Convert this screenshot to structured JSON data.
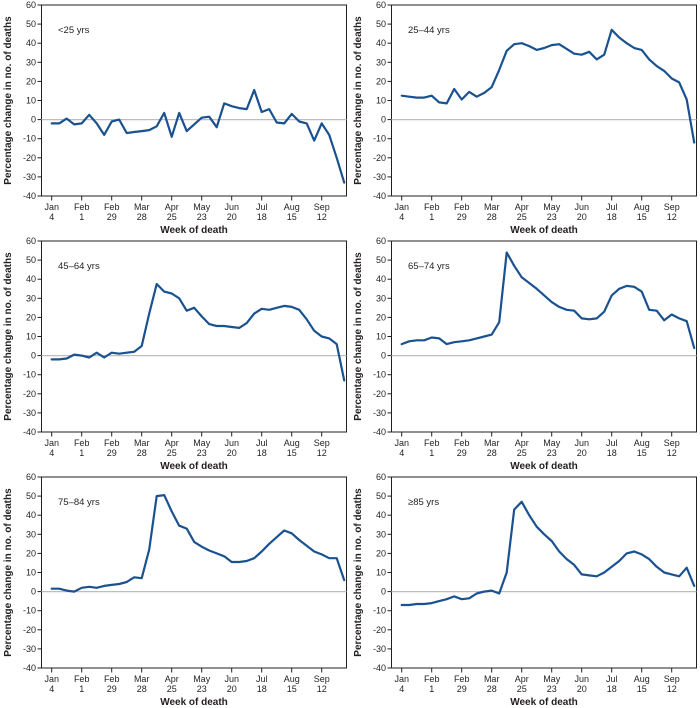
{
  "figure": {
    "background": "#ffffff",
    "colors": {
      "line": "#1a5290",
      "zero_line": "#bdbdbd",
      "axis": "#231f20",
      "text": "#231f20"
    }
  },
  "chart_data": {
    "type": "line",
    "layout": "2x3-small-multiples",
    "x_axis_label": "Week of death",
    "y_axis_label": "Percentage change in no. of deaths",
    "ylim": [
      -40,
      60
    ],
    "y_ticks": [
      60,
      50,
      40,
      30,
      20,
      10,
      0,
      -10,
      -20,
      -30,
      -40
    ],
    "zero_reference_line": 0,
    "grid": false,
    "n_weeks": 40,
    "x_tick_week_indices": [
      0,
      4,
      8,
      12,
      16,
      20,
      24,
      28,
      32,
      36
    ],
    "x_tick_labels": [
      [
        "Jan",
        "4"
      ],
      [
        "Feb",
        "1"
      ],
      [
        "Feb",
        "29"
      ],
      [
        "Mar",
        "28"
      ],
      [
        "Apr",
        "25"
      ],
      [
        "May",
        "23"
      ],
      [
        "Jun",
        "20"
      ],
      [
        "Jul",
        "18"
      ],
      [
        "Aug",
        "15"
      ],
      [
        "Sep",
        "12"
      ]
    ],
    "panels": [
      {
        "label": "<25 yrs",
        "values": [
          -2,
          -2,
          0.5,
          -2.5,
          -2,
          2.5,
          -2,
          -8,
          -1,
          0,
          -7,
          -6.5,
          -6,
          -5.5,
          -3.5,
          3.5,
          -9,
          3.5,
          -6,
          -2.5,
          1,
          1.5,
          -4,
          8.5,
          7,
          6,
          5.5,
          15.5,
          4,
          5.5,
          -1.5,
          -2,
          3,
          -1,
          -2,
          -11,
          -2,
          -8,
          -20,
          -33
        ]
      },
      {
        "label": "25–44 yrs",
        "values": [
          12.5,
          12,
          11.5,
          11.5,
          12.5,
          9,
          8.5,
          16,
          10.5,
          14.5,
          12,
          14,
          17,
          26,
          36,
          39.5,
          40,
          38.5,
          36.5,
          37.5,
          39,
          39.5,
          37,
          34.5,
          34,
          35.5,
          31.5,
          34,
          47,
          43,
          40,
          37.5,
          36.5,
          31.5,
          28,
          25.5,
          21.5,
          19.5,
          10.5,
          -12
        ]
      },
      {
        "label": "45–64 yrs",
        "values": [
          -2,
          -2,
          -1.5,
          0.5,
          0,
          -1,
          1.5,
          -1,
          1.5,
          1,
          1.5,
          2,
          5,
          22,
          37.5,
          33.5,
          32.5,
          30,
          23.5,
          25,
          20.5,
          16.5,
          15.5,
          15.5,
          15,
          14.5,
          17,
          22,
          24.5,
          24,
          25,
          26,
          25.5,
          24,
          19,
          13,
          10,
          9,
          6,
          -13
        ]
      },
      {
        "label": "65–74 yrs",
        "values": [
          6,
          7.5,
          8,
          8,
          9.5,
          9,
          6,
          7,
          7.5,
          8,
          9,
          10,
          11,
          17.5,
          54,
          47,
          41,
          38,
          35,
          31.5,
          28,
          25.5,
          24,
          23.5,
          19.5,
          19,
          19.5,
          23,
          31.5,
          35,
          36.5,
          36,
          33.5,
          24,
          23.5,
          18.5,
          21.5,
          19.5,
          18,
          4
        ]
      },
      {
        "label": "75–84 yrs",
        "values": [
          1.5,
          1.5,
          0.5,
          0,
          2,
          2.5,
          2,
          3,
          3.5,
          4,
          5,
          7.5,
          7,
          22,
          50,
          50.5,
          42,
          34.5,
          33,
          26,
          23.5,
          21.5,
          20,
          18.5,
          15.5,
          15.5,
          16,
          17.5,
          21,
          25,
          28.5,
          32,
          30.5,
          27,
          24,
          21,
          19.5,
          17.5,
          17.5,
          6
        ]
      },
      {
        "label": "≥85 yrs",
        "values": [
          -7,
          -7,
          -6.5,
          -6.5,
          -6,
          -5,
          -4,
          -2.5,
          -4,
          -3.5,
          -1,
          0,
          0.5,
          -1,
          10,
          43,
          47,
          40,
          34,
          30,
          26.5,
          21,
          17,
          14,
          9,
          8.5,
          8,
          10,
          13,
          16,
          20,
          21,
          19.5,
          17,
          13,
          10,
          9,
          8,
          12.5,
          3
        ]
      }
    ]
  }
}
